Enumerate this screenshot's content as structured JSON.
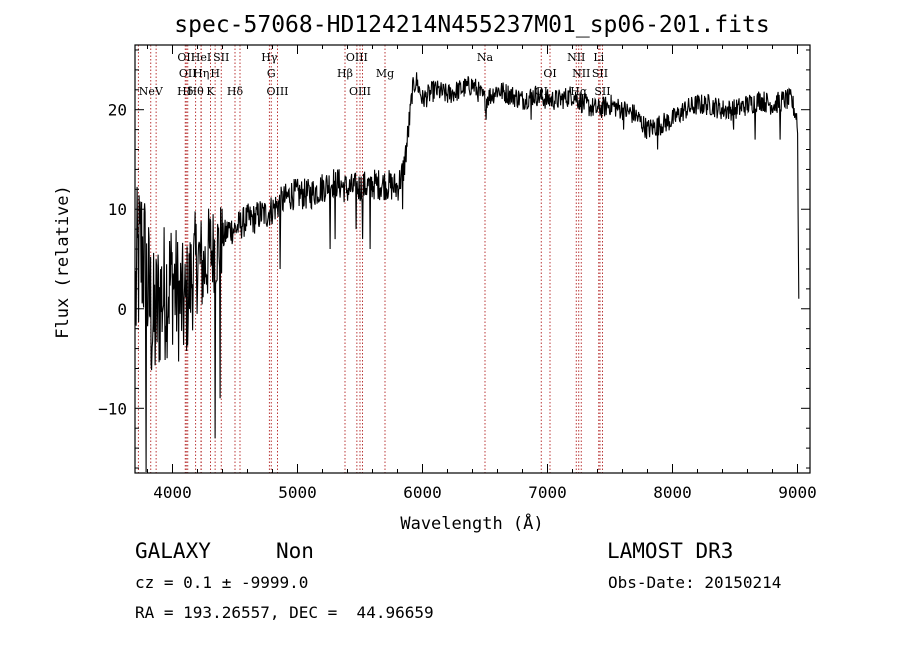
{
  "chart_data": {
    "type": "line",
    "title": "spec-57068-HD124214N455237M01_sp06-201.fits",
    "xlabel": "Wavelength (Å)",
    "ylabel": "Flux (relative)",
    "xlim": [
      3700,
      9100
    ],
    "ylim": [
      -16.5,
      26.5
    ],
    "x_ticks": [
      4000,
      5000,
      6000,
      7000,
      8000,
      9000
    ],
    "y_ticks": [
      -10,
      0,
      10,
      20
    ],
    "series": [
      {
        "name": "spectrum",
        "anchors": [
          [
            3700,
            0
          ],
          [
            3720,
            4
          ],
          [
            3760,
            6
          ],
          [
            3800,
            2
          ],
          [
            3850,
            -2
          ],
          [
            3900,
            1
          ],
          [
            3950,
            2
          ],
          [
            4000,
            3
          ],
          [
            4050,
            1
          ],
          [
            4100,
            0
          ],
          [
            4150,
            3
          ],
          [
            4200,
            5
          ],
          [
            4250,
            4
          ],
          [
            4300,
            6
          ],
          [
            4350,
            6
          ],
          [
            4400,
            7
          ],
          [
            4450,
            8
          ],
          [
            4500,
            8
          ],
          [
            4550,
            8.5
          ],
          [
            4600,
            9
          ],
          [
            4650,
            9
          ],
          [
            4700,
            9.5
          ],
          [
            4750,
            9.5
          ],
          [
            4800,
            10
          ],
          [
            4850,
            10.5
          ],
          [
            4900,
            11
          ],
          [
            4950,
            11.5
          ],
          [
            5000,
            11.5
          ],
          [
            5100,
            11.5
          ],
          [
            5200,
            12.2
          ],
          [
            5300,
            12.8
          ],
          [
            5400,
            12
          ],
          [
            5500,
            12.2
          ],
          [
            5600,
            12.5
          ],
          [
            5700,
            12.5
          ],
          [
            5800,
            12.2
          ],
          [
            5850,
            14
          ],
          [
            5880,
            17
          ],
          [
            5920,
            22
          ],
          [
            5950,
            23
          ],
          [
            6000,
            21
          ],
          [
            6100,
            22
          ],
          [
            6200,
            21.5
          ],
          [
            6300,
            22
          ],
          [
            6400,
            22.5
          ],
          [
            6500,
            21
          ],
          [
            6600,
            22
          ],
          [
            6700,
            21.5
          ],
          [
            6800,
            21
          ],
          [
            6900,
            21.5
          ],
          [
            7000,
            21
          ],
          [
            7100,
            21
          ],
          [
            7200,
            21.5
          ],
          [
            7300,
            20.5
          ],
          [
            7400,
            20
          ],
          [
            7500,
            20.5
          ],
          [
            7600,
            20
          ],
          [
            7700,
            19.5
          ],
          [
            7800,
            18
          ],
          [
            7900,
            18.5
          ],
          [
            8000,
            19
          ],
          [
            8100,
            20
          ],
          [
            8200,
            20.5
          ],
          [
            8300,
            20.5
          ],
          [
            8400,
            20
          ],
          [
            8500,
            20
          ],
          [
            8600,
            20.5
          ],
          [
            8700,
            21
          ],
          [
            8800,
            20.5
          ],
          [
            8900,
            21
          ],
          [
            8950,
            21
          ],
          [
            9000,
            19
          ],
          [
            9010,
            1
          ]
        ],
        "dips": [
          [
            3790,
            -17
          ],
          [
            4340,
            -13
          ],
          [
            4380,
            -9
          ],
          [
            4860,
            4
          ],
          [
            5260,
            6
          ],
          [
            5300,
            7
          ],
          [
            5470,
            8
          ],
          [
            5520,
            7
          ],
          [
            5580,
            6
          ],
          [
            5840,
            10
          ],
          [
            6510,
            19
          ],
          [
            6870,
            19
          ],
          [
            7610,
            18
          ],
          [
            7880,
            16
          ],
          [
            8490,
            18
          ],
          [
            8660,
            17
          ],
          [
            8860,
            17
          ]
        ]
      }
    ],
    "spectral_lines": [
      {
        "wavelength": 3826,
        "row": 2,
        "labels": [
          "NeV"
        ]
      },
      {
        "wavelength": 3727,
        "row": 0,
        "labels": []
      },
      {
        "wavelength": 4102,
        "row": 2,
        "labels": [
          "Hδ"
        ]
      },
      {
        "wavelength": 3869,
        "row": 0,
        "labels": []
      },
      {
        "wavelength": 4110,
        "row": 0,
        "labels": [
          "OII"
        ]
      },
      {
        "wavelength": 4122,
        "row": 1,
        "labels": [
          "OII"
        ]
      },
      {
        "wavelength": 4185,
        "row": 2,
        "labels": [
          "Hθ"
        ]
      },
      {
        "wavelength": 4228,
        "row": 0,
        "labels": [
          "HeI"
        ]
      },
      {
        "wavelength": 4230,
        "row": 1,
        "labels": [
          "Hη"
        ]
      },
      {
        "wavelength": 4304,
        "row": 2,
        "labels": [
          "K"
        ]
      },
      {
        "wavelength": 4341,
        "row": 1,
        "labels": [
          "H"
        ]
      },
      {
        "wavelength": 4390,
        "row": 0,
        "labels": [
          "SII"
        ]
      },
      {
        "wavelength": 4500,
        "row": 2,
        "labels": [
          "Hδ"
        ]
      },
      {
        "wavelength": 4540,
        "row": 0,
        "labels": []
      },
      {
        "wavelength": 4775,
        "row": 0,
        "labels": [
          "Hγ"
        ]
      },
      {
        "wavelength": 4790,
        "row": 1,
        "labels": [
          "G"
        ]
      },
      {
        "wavelength": 4840,
        "row": 2,
        "labels": [
          "OIII"
        ]
      },
      {
        "wavelength": 5380,
        "row": 1,
        "labels": [
          "Hβ"
        ]
      },
      {
        "wavelength": 5475,
        "row": 0,
        "labels": [
          "OIII"
        ]
      },
      {
        "wavelength": 5500,
        "row": 2,
        "labels": [
          "OIII"
        ]
      },
      {
        "wavelength": 5520,
        "row": 0,
        "labels": []
      },
      {
        "wavelength": 5700,
        "row": 1,
        "labels": [
          "Mg"
        ]
      },
      {
        "wavelength": 6500,
        "row": 0,
        "labels": [
          "Na"
        ]
      },
      {
        "wavelength": 6950,
        "row": 2,
        "labels": [
          "OI"
        ]
      },
      {
        "wavelength": 7020,
        "row": 1,
        "labels": [
          "OI"
        ]
      },
      {
        "wavelength": 7230,
        "row": 0,
        "labels": [
          "NII"
        ]
      },
      {
        "wavelength": 7250,
        "row": 2,
        "labels": [
          "Hα"
        ]
      },
      {
        "wavelength": 7270,
        "row": 1,
        "labels": [
          "NII"
        ]
      },
      {
        "wavelength": 7410,
        "row": 0,
        "labels": [
          "Li"
        ]
      },
      {
        "wavelength": 7420,
        "row": 1,
        "labels": [
          "SII"
        ]
      },
      {
        "wavelength": 7440,
        "row": 2,
        "labels": [
          "SII"
        ]
      }
    ]
  },
  "info": {
    "classification": "GALAXY",
    "subclass": "Non",
    "survey": "LAMOST DR3",
    "cz_line": "cz = 0.1 ± -9999.0",
    "obs_date": "Obs-Date: 20150214",
    "coords": "RA = 193.26557, DEC =  44.96659"
  },
  "colors": {
    "axis": "#000000",
    "spectrum": "#000000",
    "line_marker": "#b22222"
  }
}
